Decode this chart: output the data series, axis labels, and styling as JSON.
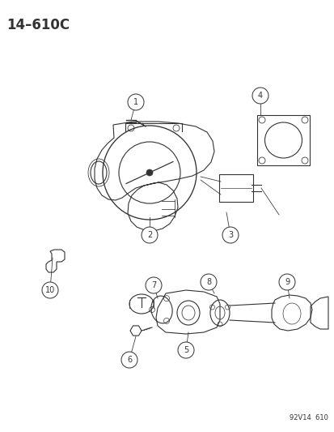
{
  "title": "14–610C",
  "footer": "92V14  610",
  "bg_color": "#ffffff",
  "line_color": "#333333",
  "lw": 0.8,
  "fig_w": 4.14,
  "fig_h": 5.33,
  "dpi": 100
}
